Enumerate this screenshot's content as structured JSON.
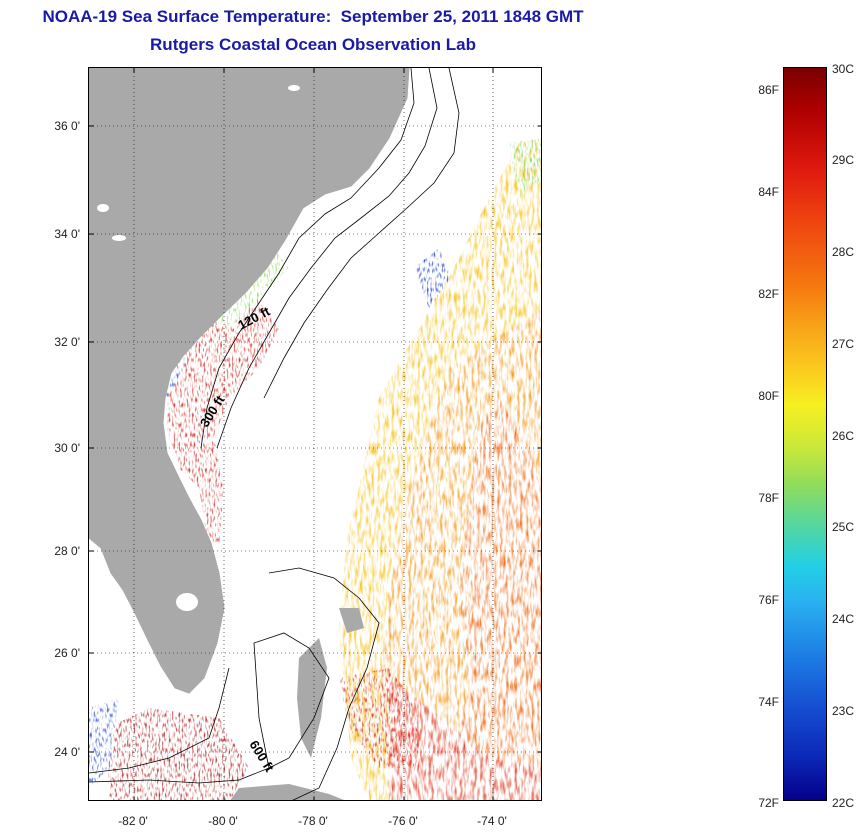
{
  "title": {
    "line1": "NOAA-19 Sea Surface Temperature:  September 25, 2011 1848 GMT",
    "line2": "Rutgers Coastal Ocean Observation Lab"
  },
  "map": {
    "lat_labels": [
      "36 0'",
      "34 0'",
      "32 0'",
      "30 0'",
      "28 0'",
      "26 0'",
      "24 0'"
    ],
    "lon_labels": [
      "-82 0'",
      "-80 0'",
      "-78 0'",
      "-76 0'",
      "-74 0'"
    ],
    "contour_labels": {
      "c120": "120 ft",
      "c300": "300 ft",
      "c600": "600 ft"
    },
    "colors": {
      "land": "#a9a9a9",
      "ocean_no_data": "#ffffff",
      "warm": "#d01010",
      "hot": "#a00000",
      "orange": "#f07818",
      "yellow": "#f6d020",
      "green": "#7ad85a",
      "cyan": "#2ad0e6",
      "blue": "#1030c0"
    }
  },
  "colorbar": {
    "fahrenheit_labels": [
      "86F",
      "84F",
      "82F",
      "80F",
      "78F",
      "76F",
      "74F",
      "72F"
    ],
    "celsius_labels": [
      "30C",
      "29C",
      "28C",
      "27C",
      "26C",
      "25C",
      "24C",
      "23C",
      "22C"
    ],
    "min_c": 22,
    "max_c": 30,
    "min_f": 72,
    "max_f": 86
  }
}
